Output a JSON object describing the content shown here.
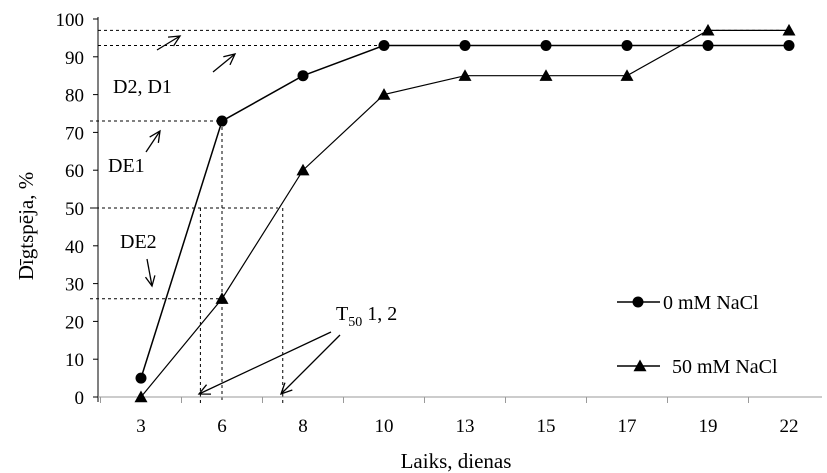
{
  "chart_data": {
    "type": "line",
    "title": "",
    "xlabel": "Laiks, dienas",
    "ylabel": "Dīgtspēja, %",
    "categories": [
      "3",
      "6",
      "8",
      "10",
      "13",
      "15",
      "17",
      "19",
      "22"
    ],
    "ylim": [
      0,
      100
    ],
    "yticks": [
      0,
      10,
      20,
      30,
      40,
      50,
      60,
      70,
      80,
      90,
      100
    ],
    "grid": false,
    "legend": "right",
    "series": [
      {
        "name": "0 mM NaCl",
        "marker": "circle",
        "values": [
          5,
          73,
          85,
          93,
          93,
          93,
          93,
          93,
          93
        ]
      },
      {
        "name": "50 mM NaCl",
        "marker": "triangle",
        "values": [
          0,
          26,
          60,
          80,
          85,
          85,
          85,
          97,
          97
        ]
      }
    ],
    "reference_lines": {
      "horizontal": [
        97,
        93,
        73,
        50,
        26
      ],
      "vertical": [
        5.2,
        6,
        7.5
      ]
    },
    "annotations": {
      "d2_d1": "D2, D1",
      "de1": "DE1",
      "de2": "DE2",
      "t50_main": "T",
      "t50_sub": "50",
      "t50_suffix": " 1, 2"
    },
    "colors": {
      "line": "#000000",
      "reference": "#000000",
      "background": "#ffffff"
    }
  }
}
